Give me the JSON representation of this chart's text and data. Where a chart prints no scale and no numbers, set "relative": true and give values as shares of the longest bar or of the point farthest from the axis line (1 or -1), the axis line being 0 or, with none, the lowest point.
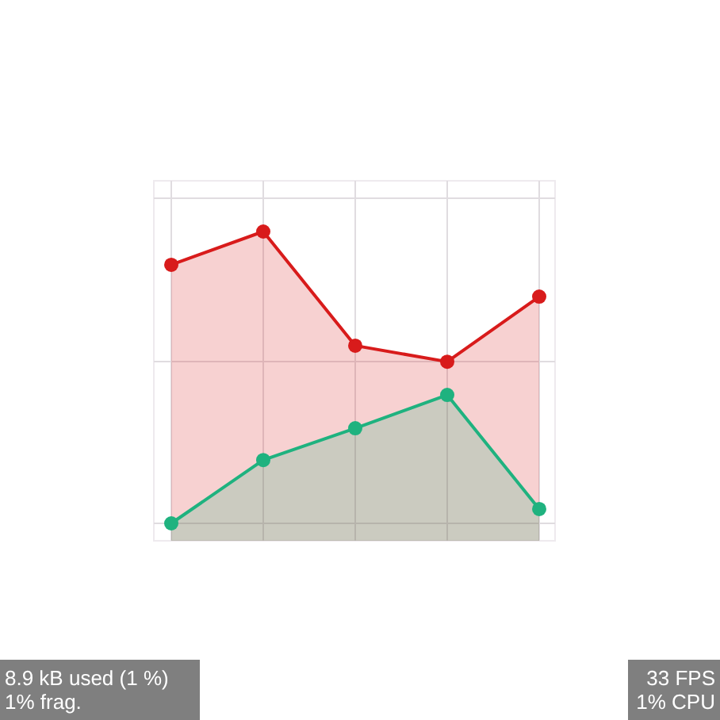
{
  "chart_data": {
    "type": "area",
    "relative": true,
    "categories": [
      null,
      null,
      null,
      null,
      null
    ],
    "series": [
      {
        "color": "#d81b1b",
        "values": [
          0.886,
          1,
          0.609,
          0.554,
          0.777
        ]
      },
      {
        "color": "#1fb27f",
        "values": [
          0,
          0.217,
          0.326,
          0.44,
          0.049
        ]
      }
    ],
    "grid": true,
    "marker": "circle",
    "annotations": [
      "8.9 kB used (1 %)\n1% frag.",
      "33 FPS\n1% CPU"
    ]
  }
}
